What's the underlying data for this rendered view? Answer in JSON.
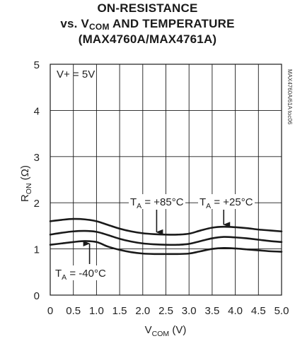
{
  "chart_data": {
    "type": "line",
    "title": {
      "line1": "ON-RESISTANCE",
      "line2_prefix": "vs. V",
      "line2_sub": "COM",
      "line2_suffix": " AND TEMPERATURE",
      "line3": "(MAX4760A/MAX4761A)"
    },
    "xlabel": {
      "main": "V",
      "sub": "COM",
      "unit": " (V)"
    },
    "ylabel": {
      "main": "R",
      "sub": "ON",
      "unit": " (Ω)"
    },
    "xlim": [
      0,
      5
    ],
    "ylim": [
      0,
      5
    ],
    "x_ticks": [
      "0",
      "0.5",
      "1.0",
      "1.5",
      "2.0",
      "2.5",
      "3.0",
      "3.5",
      "4.0",
      "4.5",
      "5.0"
    ],
    "y_ticks": [
      "0",
      "1",
      "2",
      "3",
      "4",
      "5"
    ],
    "grid": true,
    "condition_label": "V+ = 5V",
    "side_label": "MAX4760A/61A toc06",
    "x": [
      0,
      0.25,
      0.5,
      0.75,
      1.0,
      1.25,
      1.5,
      1.75,
      2.0,
      2.25,
      2.5,
      2.75,
      3.0,
      3.25,
      3.5,
      3.75,
      4.0,
      4.25,
      4.5,
      4.75,
      5.0
    ],
    "series": [
      {
        "name": "TA = +85°C",
        "values": [
          1.6,
          1.63,
          1.65,
          1.64,
          1.6,
          1.52,
          1.44,
          1.38,
          1.34,
          1.32,
          1.31,
          1.31,
          1.33,
          1.4,
          1.46,
          1.48,
          1.47,
          1.45,
          1.42,
          1.4,
          1.38
        ]
      },
      {
        "name": "TA = +25°C",
        "values": [
          1.31,
          1.35,
          1.38,
          1.39,
          1.37,
          1.3,
          1.22,
          1.16,
          1.12,
          1.1,
          1.09,
          1.09,
          1.11,
          1.17,
          1.23,
          1.26,
          1.25,
          1.23,
          1.2,
          1.17,
          1.15
        ]
      },
      {
        "name": "TA = -40°C",
        "values": [
          1.09,
          1.12,
          1.15,
          1.17,
          1.15,
          1.05,
          0.98,
          0.93,
          0.9,
          0.89,
          0.89,
          0.89,
          0.9,
          0.95,
          1.0,
          1.02,
          1.01,
          0.99,
          0.97,
          0.95,
          0.94
        ]
      }
    ],
    "annotations": [
      {
        "prefix": "T",
        "sub": "A",
        "text": " = +85°C",
        "arrow_to_x": 2.3,
        "arrow_to_series": 0
      },
      {
        "prefix": "T",
        "sub": "A",
        "text": " = +25°C",
        "arrow_to_x": 3.75,
        "arrow_to_series": 0
      },
      {
        "prefix": "T",
        "sub": "A",
        "text": " = -40°C",
        "arrow_to_x": 0.85,
        "arrow_to_series": 2
      }
    ]
  }
}
